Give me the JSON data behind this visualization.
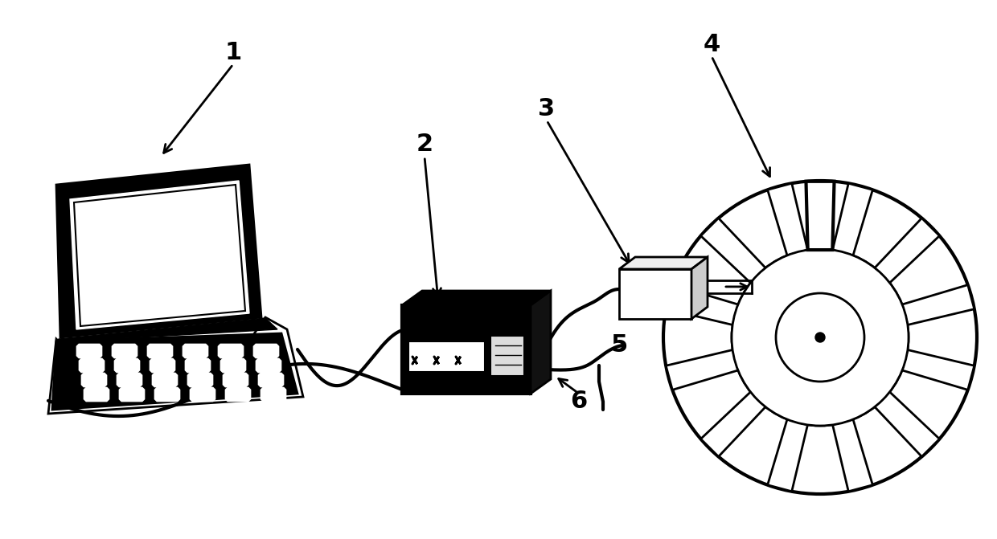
{
  "bg_color": "#ffffff",
  "line_color": "#000000",
  "label_fontsize": 22,
  "figsize": [
    12.4,
    6.71
  ],
  "dpi": 100
}
